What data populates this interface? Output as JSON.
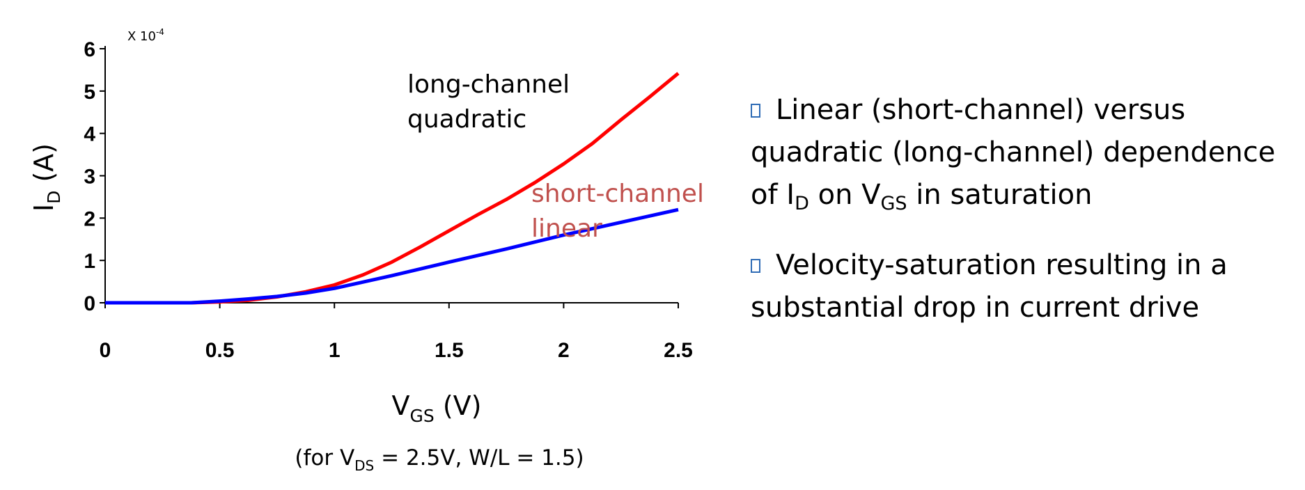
{
  "chart_data": {
    "type": "line",
    "multiplier_label": "X 10",
    "multiplier_exponent": "-4",
    "ylabel_main": "I",
    "ylabel_sub": "D",
    "ylabel_rest": " (A)",
    "xlabel_main": "V",
    "xlabel_sub": "GS",
    "xlabel_rest": " (V)",
    "caption_pre": "(for V",
    "caption_sub": "DS",
    "caption_post": " = 2.5V, W/L = 1.5)",
    "xlim": [
      0,
      2.5
    ],
    "ylim": [
      0,
      6
    ],
    "xticks": [
      "0",
      "0.5",
      "1",
      "1.5",
      "2",
      "2.5"
    ],
    "yticks": [
      "0",
      "1",
      "2",
      "3",
      "4",
      "5",
      "6"
    ],
    "series": [
      {
        "color": "#ff0000",
        "x": [
          0,
          0.375,
          0.5,
          0.625,
          0.75,
          0.875,
          1.0,
          1.125,
          1.25,
          1.375,
          1.5,
          1.625,
          1.75,
          1.875,
          2.0,
          2.125,
          2.25,
          2.375,
          2.5
        ],
        "y": [
          0,
          0,
          0.02,
          0.06,
          0.14,
          0.26,
          0.42,
          0.66,
          0.96,
          1.32,
          1.7,
          2.08,
          2.44,
          2.84,
          3.28,
          3.76,
          4.32,
          4.86,
          5.42
        ]
      },
      {
        "color": "#0000ff",
        "x": [
          0,
          0.375,
          0.5,
          0.625,
          0.75,
          0.875,
          1.0,
          1.25,
          1.5,
          1.75,
          2.0,
          2.25,
          2.5
        ],
        "y": [
          0,
          0,
          0.04,
          0.09,
          0.15,
          0.23,
          0.34,
          0.64,
          0.96,
          1.27,
          1.6,
          1.9,
          2.2
        ]
      }
    ],
    "annotations": [
      {
        "lines": [
          "long-channel",
          "quadratic"
        ],
        "color": "#000000"
      },
      {
        "lines": [
          "short-channel",
          "linear"
        ],
        "color": "#c0504d"
      }
    ]
  },
  "bullets": [
    {
      "parts": [
        {
          "t": "Linear (short-channel) versus quadratic (long-channel) dependence of I"
        },
        {
          "t": "D",
          "sub": true
        },
        {
          "t": " on V"
        },
        {
          "t": "GS",
          "sub": true
        },
        {
          "t": " in saturation"
        }
      ]
    },
    {
      "parts": [
        {
          "t": "Velocity-saturation resulting in a substantial drop in current drive"
        }
      ]
    }
  ],
  "colors": {
    "bullet_marker": "#2e6bb5"
  }
}
